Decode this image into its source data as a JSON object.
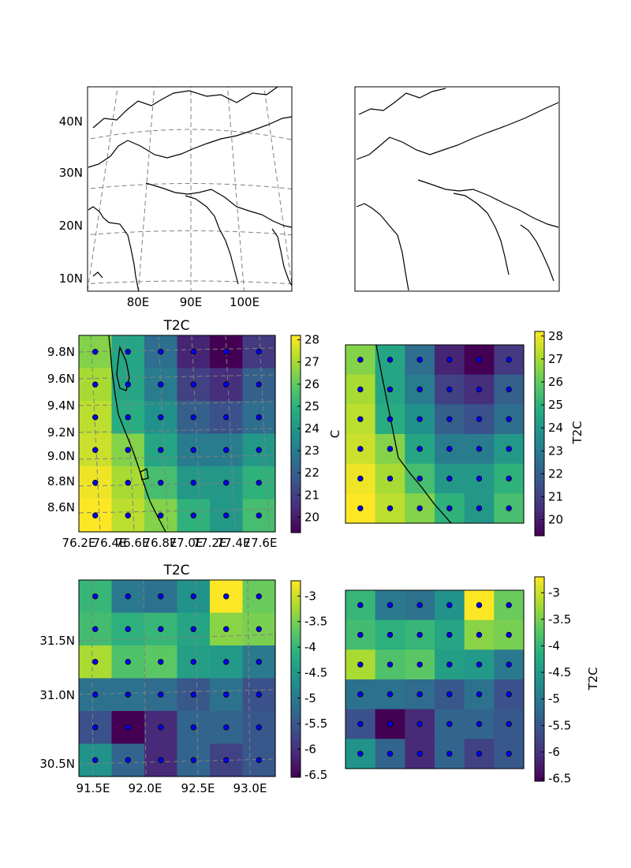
{
  "figure": {
    "panels": [
      {
        "id": "overview-map-left",
        "type": "map",
        "ytick_labels": [
          "40N",
          "30N",
          "20N",
          "10N"
        ],
        "xtick_labels": [
          "80E",
          "90E",
          "100E"
        ]
      },
      {
        "id": "overview-map-right",
        "type": "map"
      }
    ]
  },
  "chart_data": [
    {
      "type": "heatmap",
      "id": "t2c-kerala-left",
      "title": "T2C",
      "colorbar_label": "C",
      "y_labels": [
        "9.8N",
        "9.6N",
        "9.4N",
        "9.2N",
        "9.0N",
        "8.8N",
        "8.6N"
      ],
      "x_labels": [
        "76.2E",
        "76.4E",
        "76.6E",
        "76.8E",
        "77.0E",
        "77.2E",
        "77.4E",
        "77.6E"
      ],
      "colorbar_ticks": [
        28,
        27,
        26,
        25,
        24,
        23,
        22,
        21,
        20
      ],
      "vmin": 19.3,
      "vmax": 28.2,
      "cmap": "viridis",
      "values": [
        [
          26.5,
          24.5,
          22.5,
          20.2,
          19.3,
          20.8
        ],
        [
          27.0,
          24.5,
          23.0,
          21.0,
          20.5,
          22.0
        ],
        [
          27.3,
          24.8,
          23.8,
          22.0,
          21.5,
          22.5
        ],
        [
          27.5,
          26.5,
          24.5,
          23.0,
          23.0,
          24.0
        ],
        [
          28.0,
          27.0,
          25.5,
          24.0,
          24.0,
          25.0
        ],
        [
          28.2,
          27.3,
          26.5,
          25.0,
          24.0,
          25.5
        ]
      ]
    },
    {
      "type": "heatmap",
      "id": "t2c-kerala-right",
      "colorbar_label": "T2C",
      "colorbar_ticks": [
        28,
        27,
        26,
        25,
        24,
        23,
        22,
        21,
        20
      ],
      "vmin": 19.3,
      "vmax": 28.2,
      "cmap": "viridis",
      "values": [
        [
          26.5,
          24.5,
          22.5,
          20.2,
          19.3,
          20.8
        ],
        [
          27.0,
          24.5,
          23.0,
          21.0,
          20.5,
          22.0
        ],
        [
          27.3,
          24.8,
          23.8,
          22.0,
          21.5,
          22.5
        ],
        [
          27.5,
          26.5,
          24.5,
          23.0,
          23.0,
          24.0
        ],
        [
          28.0,
          27.0,
          25.5,
          24.0,
          24.0,
          25.0
        ],
        [
          28.2,
          27.3,
          26.5,
          25.0,
          24.0,
          25.5
        ]
      ]
    },
    {
      "type": "heatmap",
      "id": "t2c-tibet-left",
      "title": "T2C",
      "y_labels": [
        "31.5N",
        "31.0N",
        "30.5N"
      ],
      "x_labels": [
        "91.5E",
        "92.0E",
        "92.5E",
        "93.0E"
      ],
      "colorbar_ticks": [
        -3.0,
        -3.5,
        -4.0,
        -4.5,
        -5.0,
        -5.5,
        -6.0,
        -6.5
      ],
      "vmin": -6.55,
      "vmax": -2.7,
      "cmap": "viridis",
      "values": [
        [
          -4.0,
          -5.0,
          -5.1,
          -4.6,
          -2.7,
          -3.6
        ],
        [
          -3.9,
          -4.1,
          -4.0,
          -4.3,
          -3.4,
          -3.5
        ],
        [
          -3.2,
          -3.8,
          -3.7,
          -4.4,
          -4.5,
          -5.0
        ],
        [
          -5.1,
          -5.1,
          -5.2,
          -5.5,
          -5.1,
          -5.6
        ],
        [
          -5.6,
          -6.55,
          -6.1,
          -5.3,
          -5.3,
          -5.5
        ],
        [
          -4.6,
          -5.3,
          -6.1,
          -5.3,
          -5.8,
          -5.5
        ]
      ]
    },
    {
      "type": "heatmap",
      "id": "t2c-tibet-right",
      "colorbar_label": "T2C",
      "colorbar_ticks": [
        -3.0,
        -3.5,
        -4.0,
        -4.5,
        -5.0,
        -5.5,
        -6.0,
        -6.5
      ],
      "vmin": -6.55,
      "vmax": -2.7,
      "cmap": "viridis",
      "values": [
        [
          -4.0,
          -5.0,
          -5.1,
          -4.6,
          -2.7,
          -3.6
        ],
        [
          -3.9,
          -4.1,
          -4.0,
          -4.3,
          -3.4,
          -3.5
        ],
        [
          -3.2,
          -3.8,
          -3.7,
          -4.4,
          -4.5,
          -5.0
        ],
        [
          -5.1,
          -5.1,
          -5.2,
          -5.5,
          -5.1,
          -5.6
        ],
        [
          -5.6,
          -6.55,
          -6.1,
          -5.3,
          -5.3,
          -5.5
        ],
        [
          -4.6,
          -5.3,
          -6.1,
          -5.3,
          -5.8,
          -5.5
        ]
      ]
    }
  ]
}
